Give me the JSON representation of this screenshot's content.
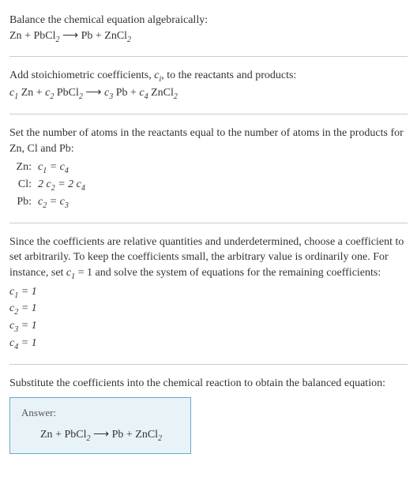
{
  "sections": {
    "header": {
      "title": "Balance the chemical equation algebraically:",
      "equation_parts": {
        "lhs1": "Zn",
        "plus1": " + ",
        "lhs2_a": "PbCl",
        "lhs2_sub": "2",
        "arrow": "  ⟶  ",
        "rhs1": "Pb",
        "plus2": " + ",
        "rhs2_a": "ZnCl",
        "rhs2_sub": "2"
      }
    },
    "stoich": {
      "text_a": "Add stoichiometric coefficients, ",
      "ci": "c",
      "ci_sub": "i",
      "text_b": ", to the reactants and products:",
      "eq": {
        "c1": "c",
        "c1_sub": "1",
        "sp1": " Zn + ",
        "c2": "c",
        "c2_sub": "2",
        "sp2": " PbCl",
        "sp2_sub": "2",
        "arrow": "  ⟶  ",
        "c3": "c",
        "c3_sub": "3",
        "sp3": " Pb + ",
        "c4": "c",
        "c4_sub": "4",
        "sp4": " ZnCl",
        "sp4_sub": "2"
      }
    },
    "atoms": {
      "text": "Set the number of atoms in the reactants equal to the number of atoms in the products for Zn, Cl and Pb:",
      "rows": [
        {
          "label": "Zn:",
          "eq_a": "c",
          "eq_a_sub": "1",
          "eq_mid": " = ",
          "eq_b": "c",
          "eq_b_sub": "4",
          "pre_a": "",
          "pre_b": ""
        },
        {
          "label": "Cl:",
          "eq_a": "c",
          "eq_a_sub": "2",
          "eq_mid": " = 2 ",
          "eq_b": "c",
          "eq_b_sub": "4",
          "pre_a": "2 ",
          "pre_b": ""
        },
        {
          "label": "Pb:",
          "eq_a": "c",
          "eq_a_sub": "2",
          "eq_mid": " = ",
          "eq_b": "c",
          "eq_b_sub": "3",
          "pre_a": "",
          "pre_b": ""
        }
      ]
    },
    "solve": {
      "text_a": "Since the coefficients are relative quantities and underdetermined, choose a coefficient to set arbitrarily. To keep the coefficients small, the arbitrary value is ordinarily one. For instance, set ",
      "c1": "c",
      "c1_sub": "1",
      "eq1": " = 1",
      "text_b": " and solve the system of equations for the remaining coefficients:",
      "coeffs": [
        {
          "c": "c",
          "sub": "1",
          "val": " = 1"
        },
        {
          "c": "c",
          "sub": "2",
          "val": " = 1"
        },
        {
          "c": "c",
          "sub": "3",
          "val": " = 1"
        },
        {
          "c": "c",
          "sub": "4",
          "val": " = 1"
        }
      ]
    },
    "final": {
      "text": "Substitute the coefficients into the chemical reaction to obtain the balanced equation:",
      "answer_label": "Answer:",
      "equation": {
        "lhs1": "Zn",
        "plus1": " + ",
        "lhs2_a": "PbCl",
        "lhs2_sub": "2",
        "arrow": "  ⟶  ",
        "rhs1": "Pb",
        "plus2": " + ",
        "rhs2_a": "ZnCl",
        "rhs2_sub": "2"
      }
    }
  }
}
